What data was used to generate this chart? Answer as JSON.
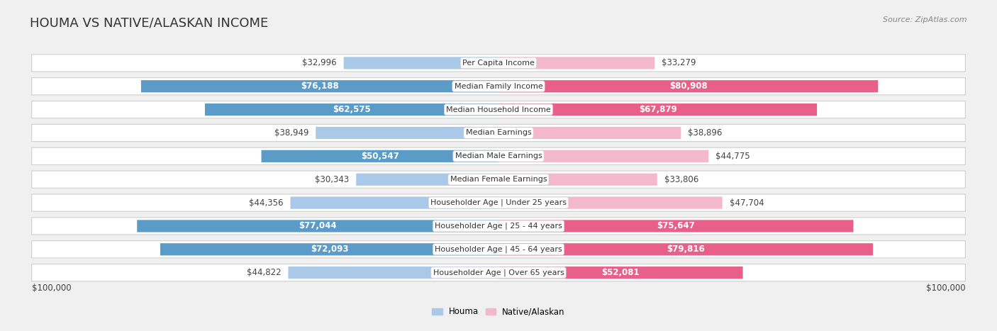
{
  "title": "HOUMA VS NATIVE/ALASKAN INCOME",
  "source": "Source: ZipAtlas.com",
  "categories": [
    "Per Capita Income",
    "Median Family Income",
    "Median Household Income",
    "Median Earnings",
    "Median Male Earnings",
    "Median Female Earnings",
    "Householder Age | Under 25 years",
    "Householder Age | 25 - 44 years",
    "Householder Age | 45 - 64 years",
    "Householder Age | Over 65 years"
  ],
  "houma_values": [
    32996,
    76188,
    62575,
    38949,
    50547,
    30343,
    44356,
    77044,
    72093,
    44822
  ],
  "native_values": [
    33279,
    80908,
    67879,
    38896,
    44775,
    33806,
    47704,
    75647,
    79816,
    52081
  ],
  "houma_labels": [
    "$32,996",
    "$76,188",
    "$62,575",
    "$38,949",
    "$50,547",
    "$30,343",
    "$44,356",
    "$77,044",
    "$72,093",
    "$44,822"
  ],
  "native_labels": [
    "$33,279",
    "$80,908",
    "$67,879",
    "$38,896",
    "$44,775",
    "$33,806",
    "$47,704",
    "$75,647",
    "$79,816",
    "$52,081"
  ],
  "houma_color_light": "#aac8e8",
  "houma_color_dark": "#5b9bc8",
  "native_color_light": "#f4b8cc",
  "native_color_dark": "#e8608a",
  "max_value": 100000,
  "background_color": "#f0f0f0",
  "row_bg": "#ffffff",
  "legend_houma": "Houma",
  "legend_native": "Native/Alaskan",
  "xlabel_left": "$100,000",
  "xlabel_right": "$100,000",
  "title_fontsize": 13,
  "label_fontsize": 8.5,
  "category_fontsize": 8.0,
  "large_threshold": 50000
}
